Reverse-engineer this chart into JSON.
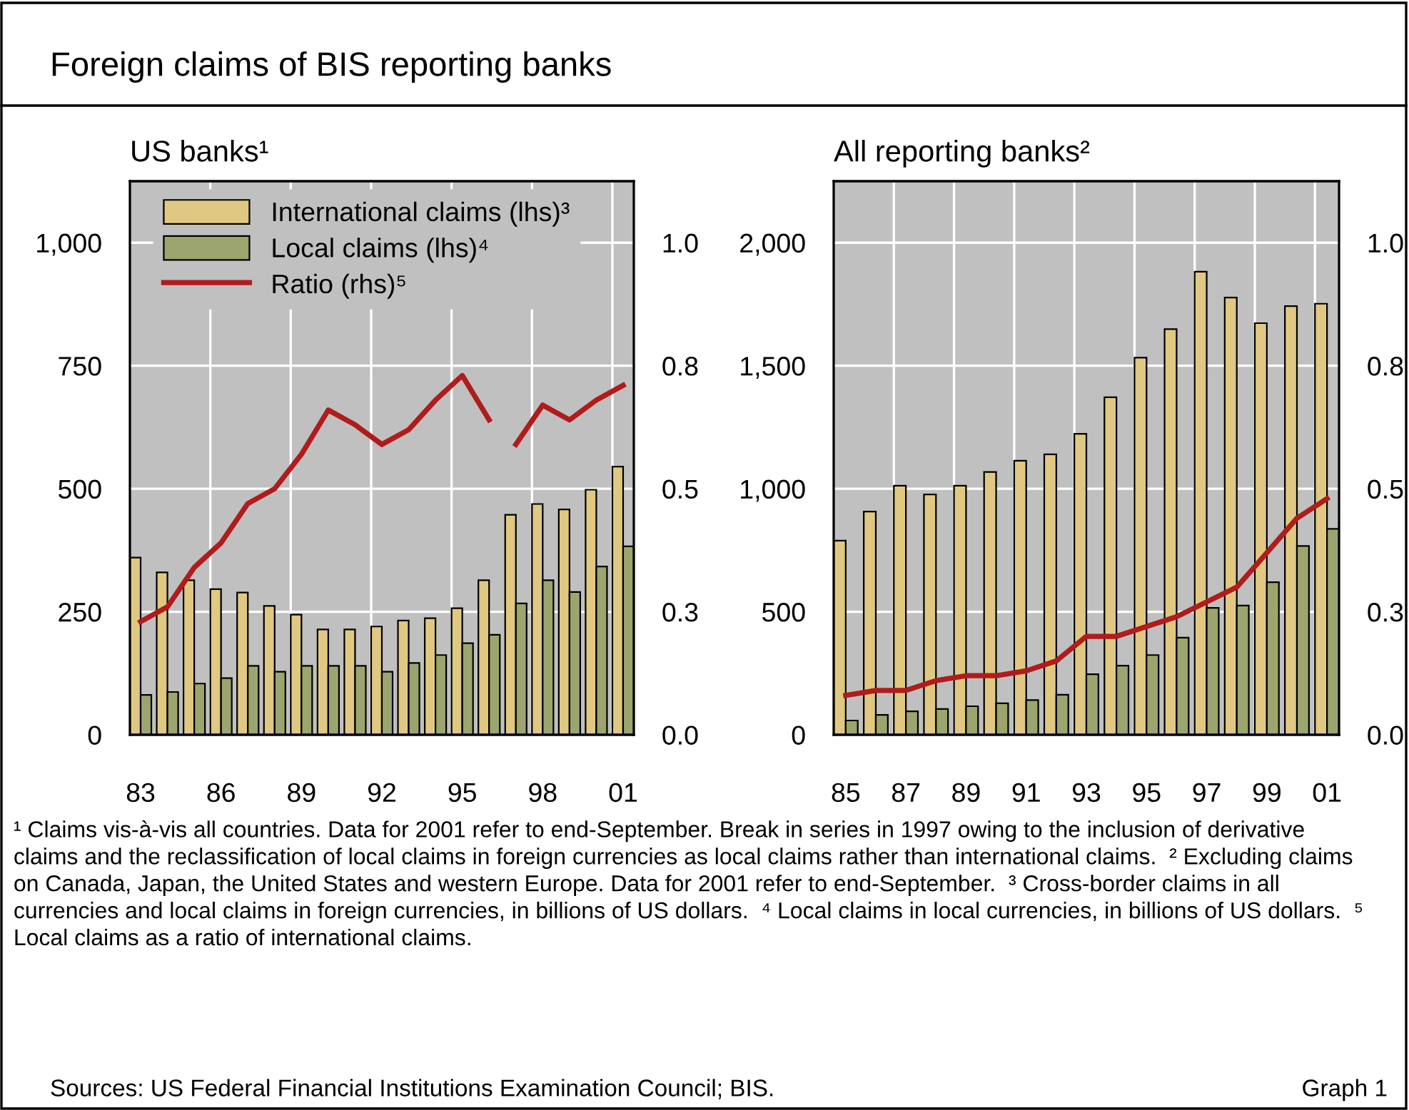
{
  "chart_data": [
    {
      "type": "bar",
      "title": "US banks¹",
      "categories": [
        "83",
        null,
        null,
        "86",
        null,
        null,
        "89",
        null,
        null,
        "92",
        null,
        null,
        "95",
        null,
        null,
        "98",
        null,
        null,
        "01"
      ],
      "series": [
        {
          "name": "International claims (lhs)³",
          "color": "#e0c882",
          "values": [
            360,
            330,
            314,
            296,
            289,
            262,
            244,
            214,
            214,
            220,
            232,
            237,
            257,
            314,
            447,
            469,
            458,
            498,
            545
          ]
        },
        {
          "name": "Local claims (lhs)⁴",
          "color": "#9ca56e",
          "values": [
            81,
            87,
            104,
            115,
            140,
            128,
            140,
            140,
            140,
            128,
            146,
            162,
            186,
            203,
            267,
            314,
            290,
            342,
            383
          ]
        },
        {
          "name": "Ratio (rhs)⁵",
          "type": "line",
          "axis": "y2",
          "color": "#b01c1c",
          "values": [
            0.23,
            0.26,
            0.34,
            0.39,
            0.47,
            0.5,
            0.57,
            0.66,
            0.63,
            0.59,
            0.62,
            0.68,
            0.73,
            0.64,
            null,
            null,
            null,
            null,
            null
          ]
        },
        {
          "type": "line",
          "axis": "y2",
          "color": "#b01c1c",
          "values": [
            null,
            null,
            null,
            null,
            null,
            null,
            null,
            null,
            null,
            null,
            null,
            null,
            null,
            null,
            0.59,
            0.67,
            0.64,
            0.68,
            0.71
          ]
        }
      ],
      "ylim": [
        0,
        1125
      ],
      "yticks": [
        0,
        250,
        500,
        750,
        {
          "value": 1000,
          "label": "1,000"
        }
      ],
      "y2lim": [
        0,
        1.125
      ],
      "y2ticks": [
        {
          "value": 0,
          "label": "0.0"
        },
        {
          "value": 0.25,
          "label": "0.3"
        },
        {
          "value": 0.5,
          "label": "0.5"
        },
        {
          "value": 0.75,
          "label": "0.8"
        },
        {
          "value": 1.0,
          "label": "1.0"
        }
      ],
      "grid": true,
      "legend": "top left",
      "line_style": "solid",
      "annotations": [
        "Foreign claims of BIS reporting banks",
        "¹ Claims vis-à-vis all countries. Data for 2001 refer to end-September. Break in series in 1997 owing to the inclusion of derivative claims and the reclassification of local claims in foreign currencies as local claims rather than international claims.  ² Excluding claims on Canada, Japan, the United States and western Europe. Data for 2001 refer to end-September.  ³ Cross-border claims in all currencies and local claims in foreign currencies, in billions of US dollars.  ⁴ Local claims in local currencies, in billions of US dollars.  ⁵ Local claims as a ratio of international claims.",
        "Sources: US Federal Financial Institutions Examination Council; BIS.",
        "Graph 1"
      ]
    },
    {
      "type": "bar",
      "title": "All reporting banks²",
      "categories": [
        "85",
        null,
        "87",
        null,
        "89",
        null,
        "91",
        null,
        "93",
        null,
        "95",
        null,
        "97",
        null,
        "99",
        null,
        "01"
      ],
      "series": [
        {
          "color": "#e0c882",
          "values": [
            789,
            907,
            1012,
            977,
            1012,
            1068,
            1114,
            1140,
            1223,
            1372,
            1533,
            1649,
            1882,
            1777,
            1673,
            1742,
            1752
          ]
        },
        {
          "color": "#9ca56e",
          "values": [
            58,
            81,
            95,
            105,
            116,
            128,
            141,
            163,
            246,
            281,
            324,
            395,
            516,
            525,
            620,
            767,
            837
          ]
        },
        {
          "type": "line",
          "axis": "y2",
          "color": "#b01c1c",
          "values": [
            0.08,
            0.09,
            0.09,
            0.11,
            0.12,
            0.12,
            0.13,
            0.15,
            0.2,
            0.2,
            0.22,
            0.24,
            0.27,
            0.3,
            0.37,
            0.44,
            0.48
          ]
        }
      ],
      "ylim": [
        0,
        2250
      ],
      "yticks": [
        0,
        {
          "value": 500,
          "label": "500"
        },
        {
          "value": 1000,
          "label": "1,000"
        },
        {
          "value": 1500,
          "label": "1,500"
        },
        {
          "value": 2000,
          "label": "2,000"
        }
      ],
      "y2lim": [
        0,
        1.125
      ],
      "y2ticks": [
        {
          "value": 0,
          "label": "0.0"
        },
        {
          "value": 0.25,
          "label": "0.3"
        },
        {
          "value": 0.5,
          "label": "0.5"
        },
        {
          "value": 0.75,
          "label": "0.8"
        },
        {
          "value": 1.0,
          "label": "1.0"
        }
      ],
      "grid": true,
      "line_style": "solid"
    }
  ]
}
